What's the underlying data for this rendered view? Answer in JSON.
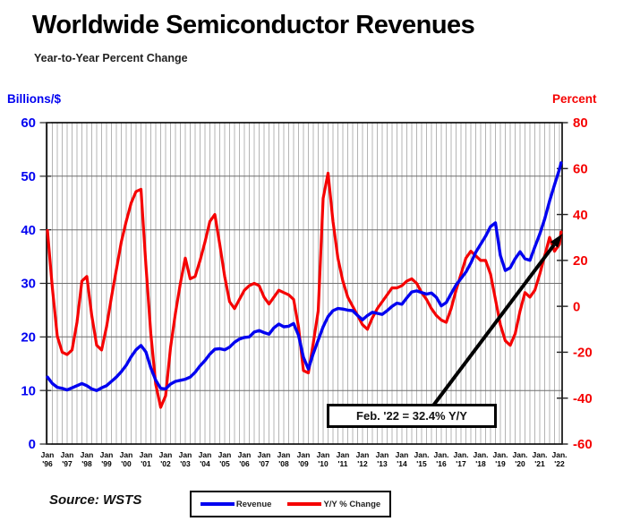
{
  "page": {
    "title": "Worldwide Semiconductor Revenues",
    "subtitle": "Year-to-Year Percent Change",
    "source": "Source: WSTS"
  },
  "axes": {
    "left_title": "Billions/$",
    "right_title": "Percent"
  },
  "legend": {
    "position": "bottom-center",
    "items": [
      {
        "label": "Revenue",
        "color": "#0202F0"
      },
      {
        "label": "Y/Y % Change",
        "color": "#F50202"
      }
    ]
  },
  "annotation": {
    "text": "Feb. '22 = 32.4% Y/Y",
    "points_to": {
      "x": 2022.083,
      "value_percent": 32.4
    }
  },
  "colors": {
    "blue": "#0202F0",
    "red": "#F50202",
    "grid_vertical": "#b4b4b4",
    "grid_horizontal": "#6e6e6e",
    "border": "#000000",
    "tick": "#222222",
    "text": "#000000"
  },
  "chart_data": {
    "type": "line",
    "title": "Worldwide Semiconductor Revenues",
    "subtitle": "Year-to-Year Percent Change",
    "x_mode": {
      "start": 1996.0,
      "step": 0.25,
      "last_x": 2022.083,
      "unit": "decimal-year, quarterly samples, final point = Feb 2022"
    },
    "left_axis": {
      "label": "Billions/$",
      "range": [
        0,
        60
      ],
      "ticks": [
        0,
        10,
        20,
        30,
        40,
        50,
        60
      ]
    },
    "right_axis": {
      "label": "Percent",
      "range": [
        -60,
        80
      ],
      "ticks": [
        -60,
        -40,
        -20,
        0,
        20,
        40,
        60,
        80
      ]
    },
    "grid": {
      "vertical": "quarterly",
      "horizontal": "every 10 units of left axis"
    },
    "legend_position": "bottom",
    "x_ticks": [
      {
        "line1": "Jan",
        "line2": "'96"
      },
      {
        "line1": "Jan",
        "line2": "'97"
      },
      {
        "line1": "Jan",
        "line2": "'98"
      },
      {
        "line1": "Jan",
        "line2": "'99"
      },
      {
        "line1": "Jan",
        "line2": "'00"
      },
      {
        "line1": "Jan",
        "line2": "'01"
      },
      {
        "line1": "Jan",
        "line2": "'02"
      },
      {
        "line1": "Jan",
        "line2": "'03"
      },
      {
        "line1": "Jan",
        "line2": "'04"
      },
      {
        "line1": "Jan",
        "line2": "'05"
      },
      {
        "line1": "Jan",
        "line2": "'06"
      },
      {
        "line1": "Jan",
        "line2": "'07"
      },
      {
        "line1": "Jan",
        "line2": "'08"
      },
      {
        "line1": "Jan",
        "line2": "'09"
      },
      {
        "line1": "Jan",
        "line2": "'10"
      },
      {
        "line1": "Jan",
        "line2": "'11"
      },
      {
        "line1": "Jan",
        "line2": "'12"
      },
      {
        "line1": "Jan",
        "line2": "'13"
      },
      {
        "line1": "Jan",
        "line2": "'14"
      },
      {
        "line1": "Jan.",
        "line2": "'15"
      },
      {
        "line1": "Jan.",
        "line2": "'16"
      },
      {
        "line1": "Jan.",
        "line2": "'17"
      },
      {
        "line1": "Jan.",
        "line2": "'18"
      },
      {
        "line1": "Jan.",
        "line2": "'19"
      },
      {
        "line1": "Jan.",
        "line2": "'20"
      },
      {
        "line1": "Jan.",
        "line2": "'21"
      },
      {
        "line1": "Jan.",
        "line2": "'22"
      }
    ],
    "series": [
      {
        "name": "Revenue",
        "axis": "left",
        "units": "US$ billions per month",
        "color": "#0202F0",
        "values": [
          12.5,
          11.3,
          10.6,
          10.4,
          10.1,
          10.5,
          10.9,
          11.3,
          10.9,
          10.3,
          10.0,
          10.5,
          10.9,
          11.7,
          12.5,
          13.5,
          14.7,
          16.3,
          17.6,
          18.4,
          17.2,
          14.2,
          11.9,
          10.4,
          10.3,
          11.2,
          11.7,
          11.9,
          12.1,
          12.5,
          13.4,
          14.6,
          15.6,
          16.8,
          17.7,
          17.8,
          17.6,
          18.1,
          19.0,
          19.6,
          19.9,
          20.0,
          20.9,
          21.2,
          20.8,
          20.5,
          21.7,
          22.4,
          21.9,
          22.0,
          22.5,
          20.3,
          16.2,
          14.0,
          16.9,
          19.4,
          21.9,
          23.8,
          24.9,
          25.3,
          25.2,
          25.0,
          24.9,
          24.0,
          23.2,
          24.0,
          24.6,
          24.4,
          24.2,
          24.9,
          25.7,
          26.3,
          26.1,
          27.3,
          28.4,
          28.6,
          28.3,
          28.0,
          28.2,
          27.4,
          25.8,
          26.4,
          28.1,
          29.7,
          30.9,
          32.1,
          33.8,
          35.8,
          37.3,
          38.8,
          40.6,
          41.3,
          35.2,
          32.4,
          32.9,
          34.6,
          35.9,
          34.6,
          34.3,
          36.8,
          39.2,
          42.0,
          45.4,
          48.4,
          51.3,
          52.5
        ]
      },
      {
        "name": "Y/Y % Change",
        "axis": "right",
        "units": "percent",
        "color": "#F50202",
        "values": [
          33,
          8,
          -13,
          -20,
          -21,
          -19,
          -7,
          11,
          13,
          -4,
          -17,
          -19,
          -9,
          4,
          16,
          28,
          37,
          45,
          50,
          51,
          18,
          -12,
          -34,
          -44,
          -39,
          -18,
          -3,
          10,
          21,
          12,
          13,
          20,
          28,
          37,
          40,
          27,
          13,
          2,
          -1,
          3,
          7,
          9,
          10,
          9,
          4,
          1,
          4,
          7,
          6,
          5,
          3,
          -9,
          -28,
          -29,
          -16,
          -2,
          47,
          58,
          37,
          21,
          11,
          4,
          0,
          -4,
          -8,
          -10,
          -5,
          -1,
          2,
          5,
          8,
          8,
          9,
          11,
          12,
          10,
          6,
          3,
          -1,
          -4,
          -6,
          -7,
          -1,
          7,
          14,
          21,
          24,
          22,
          20,
          20,
          14,
          3,
          -8,
          -15,
          -17,
          -12,
          -2,
          6,
          4,
          7,
          14,
          22,
          30,
          24,
          27,
          32.4
        ]
      }
    ]
  }
}
